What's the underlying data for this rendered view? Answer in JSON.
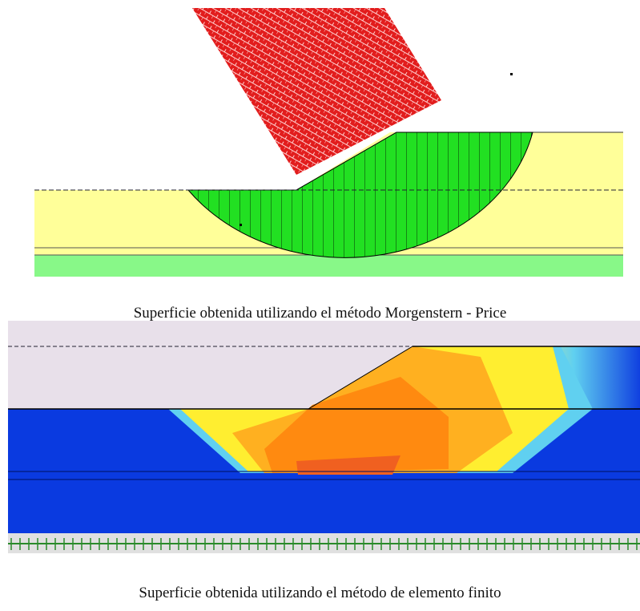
{
  "figures": [
    {
      "caption": "Superficie obtenida utilizando el método Morgenstern - Price"
    },
    {
      "caption": "Superficie obtenida utilizando el método de elemento finito"
    }
  ]
}
